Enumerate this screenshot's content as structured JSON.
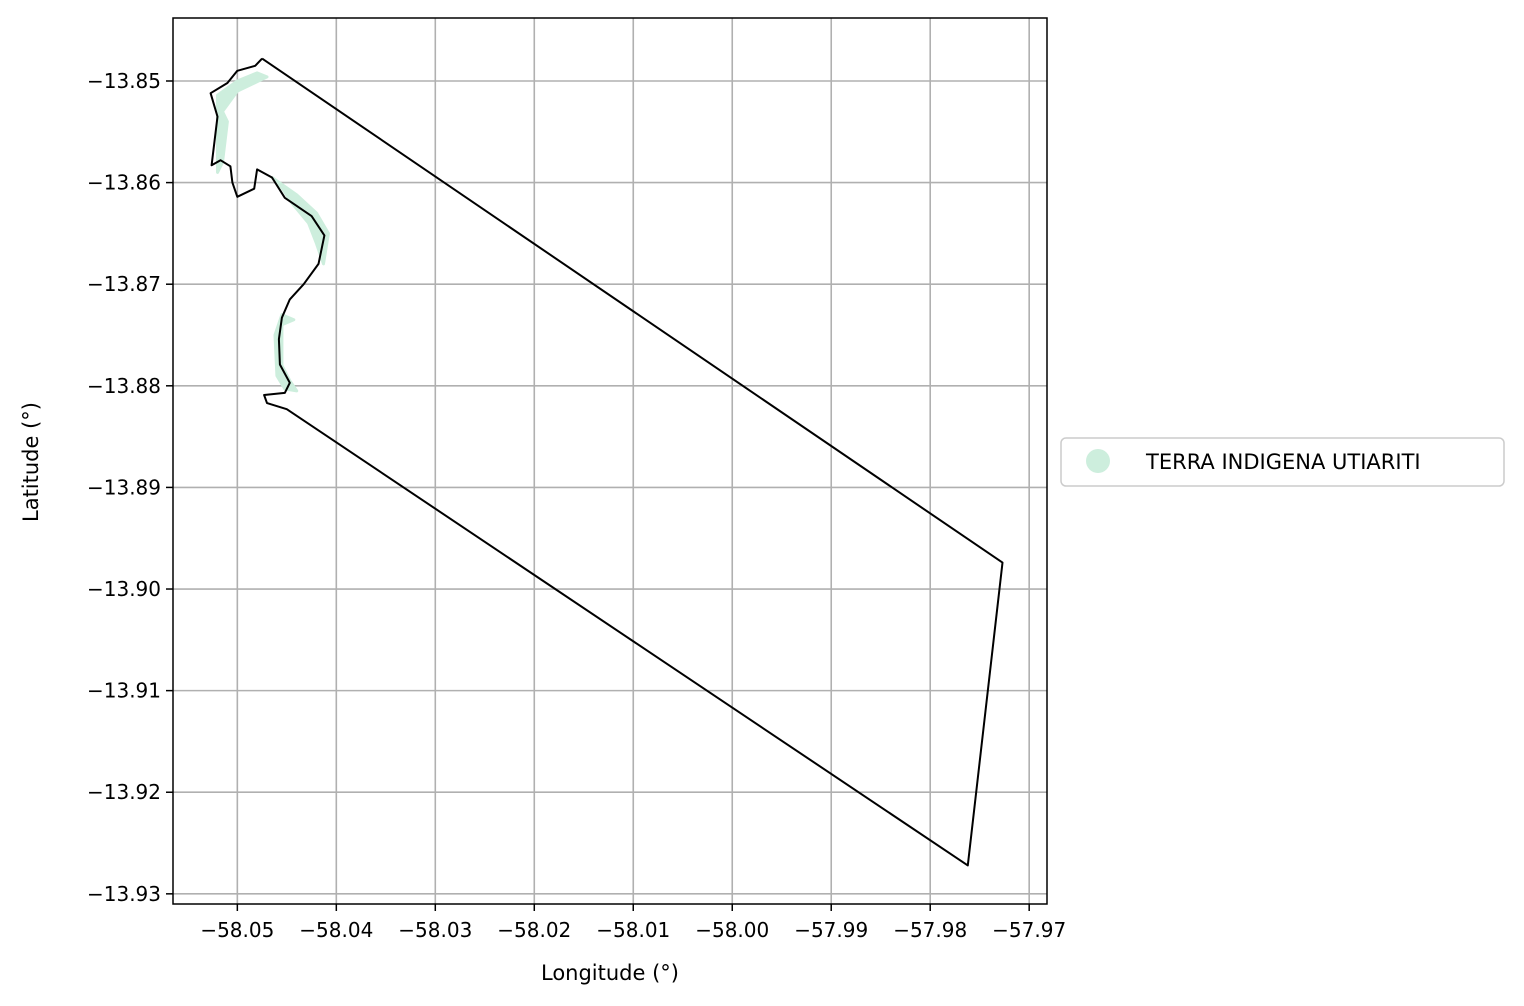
{
  "chart_data": {
    "type": "map",
    "xlabel": "Longitude (°)",
    "ylabel": "Latitude (°)",
    "xlim": [
      -58.0565,
      -57.9682
    ],
    "ylim": [
      -13.931,
      -13.8438
    ],
    "grid": true,
    "x_ticks": [
      -58.05,
      -58.04,
      -58.03,
      -58.02,
      -58.01,
      -58.0,
      -57.99,
      -57.98,
      -57.97
    ],
    "x_tick_labels": [
      "−58.05",
      "−58.04",
      "−58.03",
      "−58.02",
      "−58.01",
      "−58.00",
      "−57.99",
      "−57.98",
      "−57.97"
    ],
    "y_ticks": [
      -13.85,
      -13.86,
      -13.87,
      -13.88,
      -13.89,
      -13.9,
      -13.91,
      -13.92,
      -13.93
    ],
    "y_tick_labels": [
      "−13.85",
      "−13.86",
      "−13.87",
      "−13.88",
      "−13.89",
      "−13.90",
      "−13.91",
      "−13.92",
      "−13.93"
    ],
    "legend": {
      "placement": "center-right",
      "entries": [
        {
          "label": "TERRA INDIGENA UTIARITI",
          "color": "#cdeedd"
        }
      ]
    },
    "layers": [
      {
        "name": "TERRA INDIGENA UTIARITI",
        "kind": "fill",
        "color": "#cdeedd",
        "points": [
          [
            -58.052,
            -13.8514
          ],
          [
            -58.05,
            -13.85
          ],
          [
            -58.048,
            -13.8492
          ],
          [
            -58.047,
            -13.8496
          ],
          [
            -58.05,
            -13.851
          ],
          [
            -58.0515,
            -13.853
          ],
          [
            -58.051,
            -13.854
          ],
          [
            -58.0515,
            -13.858
          ],
          [
            -58.052,
            -13.859
          ],
          [
            -58.052,
            -13.857
          ],
          [
            -58.052,
            -13.854
          ]
        ]
      },
      {
        "name": "TERRA INDIGENA UTIARITI",
        "kind": "fill",
        "color": "#cdeedd",
        "points": [
          [
            -58.0465,
            -13.8595
          ],
          [
            -58.044,
            -13.8612
          ],
          [
            -58.042,
            -13.863
          ],
          [
            -58.0408,
            -13.865
          ],
          [
            -58.0413,
            -13.868
          ],
          [
            -58.042,
            -13.866
          ],
          [
            -58.0428,
            -13.864
          ],
          [
            -58.0445,
            -13.862
          ],
          [
            -58.0455,
            -13.8605
          ]
        ]
      },
      {
        "name": "TERRA INDIGENA UTIARITI",
        "kind": "fill",
        "color": "#cdeedd",
        "points": [
          [
            -58.0455,
            -13.873
          ],
          [
            -58.0443,
            -13.8735
          ],
          [
            -58.0455,
            -13.874
          ],
          [
            -58.0455,
            -13.878
          ],
          [
            -58.0447,
            -13.8795
          ],
          [
            -58.044,
            -13.8805
          ],
          [
            -58.0452,
            -13.8803
          ],
          [
            -58.046,
            -13.879
          ],
          [
            -58.0462,
            -13.875
          ]
        ]
      },
      {
        "name": "boundary",
        "kind": "outline",
        "color": "#000000",
        "points": [
          [
            -58.0475,
            -13.8478
          ],
          [
            -58.0482,
            -13.8485
          ],
          [
            -58.05,
            -13.849
          ],
          [
            -58.051,
            -13.8502
          ],
          [
            -58.0527,
            -13.8512
          ],
          [
            -58.052,
            -13.8535
          ],
          [
            -58.0526,
            -13.8583
          ],
          [
            -58.0517,
            -13.8578
          ],
          [
            -58.0507,
            -13.8584
          ],
          [
            -58.0505,
            -13.86
          ],
          [
            -58.05,
            -13.8614
          ],
          [
            -58.0483,
            -13.8606
          ],
          [
            -58.048,
            -13.8587
          ],
          [
            -58.0465,
            -13.8595
          ],
          [
            -58.0452,
            -13.8615
          ],
          [
            -58.0425,
            -13.8633
          ],
          [
            -58.0412,
            -13.8652
          ],
          [
            -58.0418,
            -13.868
          ],
          [
            -58.0433,
            -13.87
          ],
          [
            -58.0447,
            -13.8715
          ],
          [
            -58.0455,
            -13.8733
          ],
          [
            -58.0458,
            -13.8754
          ],
          [
            -58.0457,
            -13.8779
          ],
          [
            -58.0447,
            -13.8797
          ],
          [
            -58.0452,
            -13.8807
          ],
          [
            -58.0473,
            -13.8809
          ],
          [
            -58.047,
            -13.8817
          ],
          [
            -58.045,
            -13.8823
          ],
          [
            -57.9762,
            -13.9272
          ],
          [
            -57.9727,
            -13.8974
          ],
          [
            -58.0475,
            -13.8478
          ]
        ]
      }
    ]
  }
}
